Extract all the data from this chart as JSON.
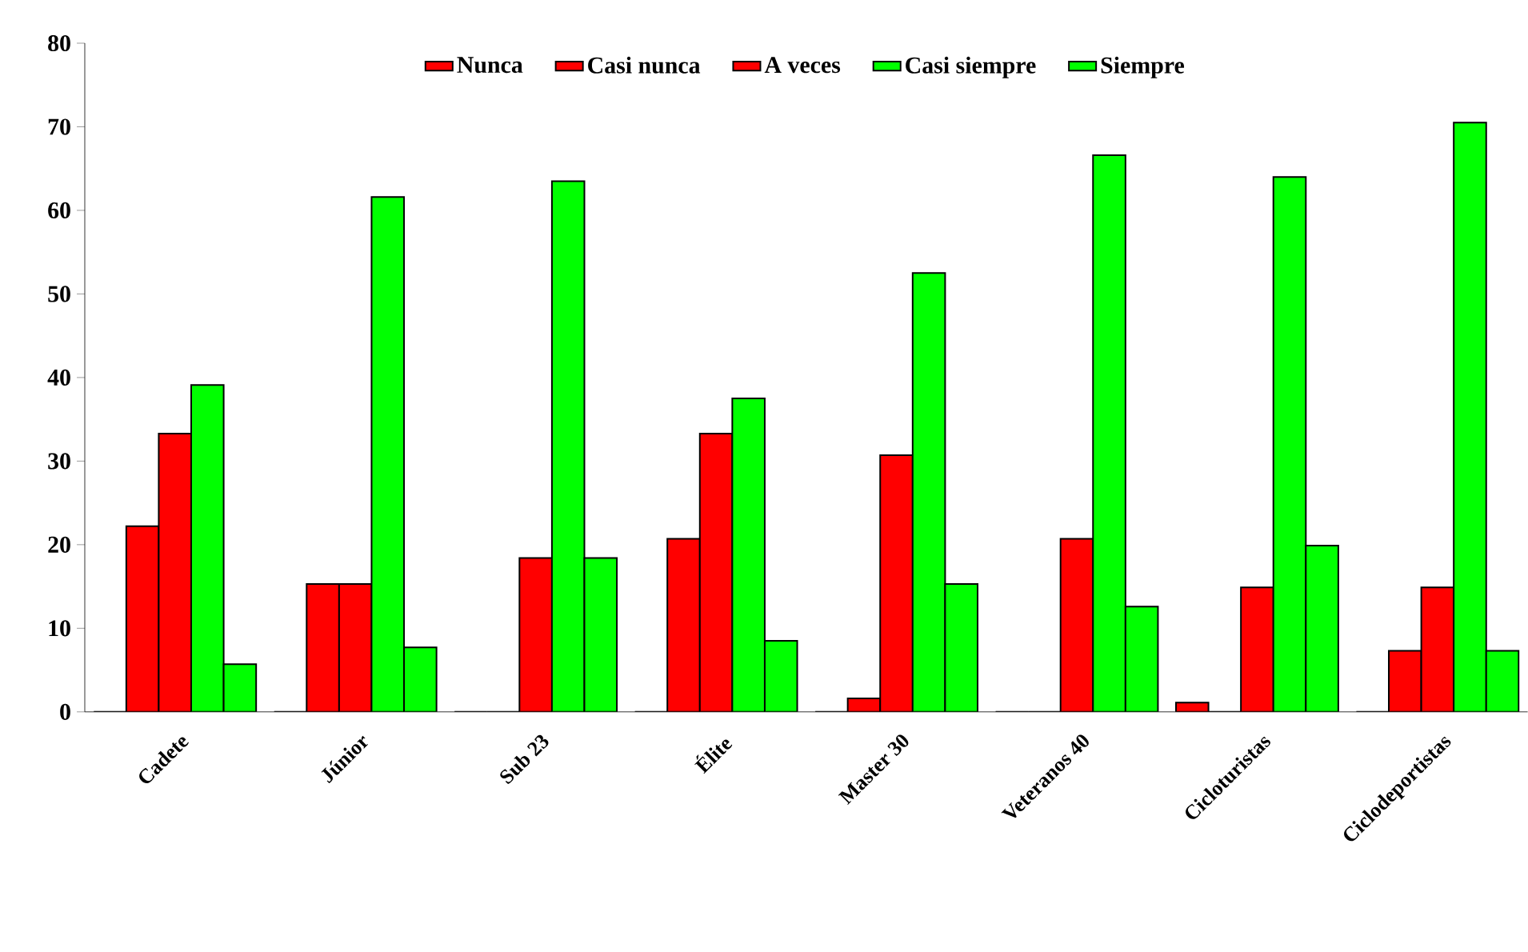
{
  "chart_data": {
    "type": "bar",
    "categories": [
      "Cadete",
      "Júnior",
      "Sub 23",
      "Élite",
      "Master 30",
      "Veteranos 40",
      "Cicloturistas",
      "Ciclodeportistas"
    ],
    "series": [
      {
        "name": "Nunca",
        "color": "#ff0000",
        "values": [
          0,
          0,
          0,
          0,
          0,
          0,
          1.1,
          0
        ]
      },
      {
        "name": "Casi nunca",
        "color": "#ff0000",
        "values": [
          22.2,
          15.3,
          0,
          20.7,
          1.6,
          0,
          0,
          7.3
        ]
      },
      {
        "name": "A veces",
        "color": "#ff0000",
        "values": [
          33.3,
          15.3,
          18.4,
          33.3,
          30.7,
          20.7,
          14.9,
          14.9
        ]
      },
      {
        "name": "Casi siempre",
        "color": "#00ff00",
        "values": [
          39.1,
          61.6,
          63.5,
          37.5,
          52.5,
          66.6,
          64.0,
          70.5
        ]
      },
      {
        "name": "Siempre",
        "color": "#00ff00",
        "values": [
          5.7,
          7.7,
          18.4,
          8.5,
          15.3,
          12.6,
          19.9,
          7.3
        ]
      }
    ],
    "ylim": [
      0,
      80
    ],
    "yticks": [
      0,
      10,
      20,
      30,
      40,
      50,
      60,
      70,
      80
    ],
    "grid": false,
    "legend": "top"
  }
}
